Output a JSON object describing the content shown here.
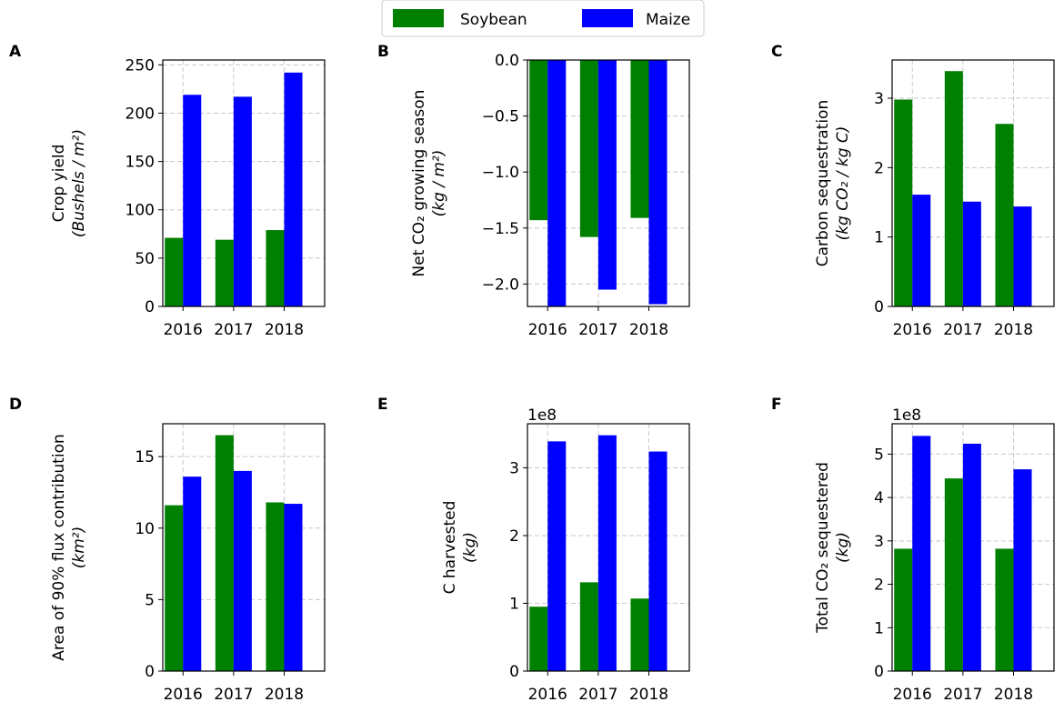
{
  "legend": [
    {
      "name": "Soybean",
      "color": "#008000"
    },
    {
      "name": "Maize",
      "color": "#0000ff"
    }
  ],
  "chart_data": [
    {
      "panel": "A",
      "type": "bar",
      "categories": [
        "2016",
        "2017",
        "2018"
      ],
      "series": [
        {
          "name": "Soybean",
          "color": "#008000",
          "values": [
            71,
            69,
            79
          ]
        },
        {
          "name": "Maize",
          "color": "#0000ff",
          "values": [
            219,
            217,
            242
          ]
        }
      ],
      "ylabel_line1": "Crop yield",
      "ylabel_line2": "(Bushels / m²)",
      "ylim": [
        0,
        255
      ],
      "yticks": [
        0,
        50,
        100,
        150,
        200,
        250
      ],
      "ytick_labels": [
        "0",
        "50",
        "100",
        "150",
        "200",
        "250"
      ],
      "offset_label": ""
    },
    {
      "panel": "B",
      "type": "bar",
      "categories": [
        "2016",
        "2017",
        "2018"
      ],
      "series": [
        {
          "name": "Soybean",
          "color": "#008000",
          "values": [
            -1.43,
            -1.58,
            -1.41
          ]
        },
        {
          "name": "Maize",
          "color": "#0000ff",
          "values": [
            -2.2,
            -2.05,
            -2.18
          ]
        }
      ],
      "ylabel_line1": "Net CO₂ growing season",
      "ylabel_line2": "(kg / m²)",
      "ylim": [
        -2.2,
        0.0
      ],
      "yticks": [
        0,
        -0.5,
        -1.0,
        -1.5,
        -2.0
      ],
      "ytick_labels": [
        "0.0",
        "−0.5",
        "−1.0",
        "−1.5",
        "−2.0"
      ],
      "offset_label": ""
    },
    {
      "panel": "C",
      "type": "bar",
      "categories": [
        "2016",
        "2017",
        "2018"
      ],
      "series": [
        {
          "name": "Soybean",
          "color": "#008000",
          "values": [
            2.98,
            3.39,
            2.63
          ]
        },
        {
          "name": "Maize",
          "color": "#0000ff",
          "values": [
            1.61,
            1.51,
            1.44
          ]
        }
      ],
      "ylabel_line1": "Carbon sequestration",
      "ylabel_line2": "(kg CO₂ / kg C)",
      "ylim": [
        0,
        3.55
      ],
      "yticks": [
        0,
        1,
        2,
        3
      ],
      "ytick_labels": [
        "0",
        "1",
        "2",
        "3"
      ],
      "offset_label": ""
    },
    {
      "panel": "D",
      "type": "bar",
      "categories": [
        "2016",
        "2017",
        "2018"
      ],
      "series": [
        {
          "name": "Soybean",
          "color": "#008000",
          "values": [
            11.6,
            16.5,
            11.8
          ]
        },
        {
          "name": "Maize",
          "color": "#0000ff",
          "values": [
            13.6,
            14.0,
            11.7
          ]
        }
      ],
      "ylabel_line1": "Area of 90% flux contribution",
      "ylabel_line2": "(km²)",
      "ylim": [
        0,
        17.3
      ],
      "yticks": [
        0,
        5,
        10,
        15
      ],
      "ytick_labels": [
        "0",
        "5",
        "10",
        "15"
      ],
      "offset_label": ""
    },
    {
      "panel": "E",
      "type": "bar",
      "categories": [
        "2016",
        "2017",
        "2018"
      ],
      "series": [
        {
          "name": "Soybean",
          "color": "#008000",
          "values": [
            0.95,
            1.31,
            1.07
          ]
        },
        {
          "name": "Maize",
          "color": "#0000ff",
          "values": [
            3.39,
            3.48,
            3.24
          ]
        }
      ],
      "ylabel_line1": "C harvested",
      "ylabel_line2": "(kg)",
      "ylim": [
        0,
        3.65
      ],
      "yticks": [
        0,
        1,
        2,
        3
      ],
      "ytick_labels": [
        "0",
        "1",
        "2",
        "3"
      ],
      "offset_label": "1e8"
    },
    {
      "panel": "F",
      "type": "bar",
      "categories": [
        "2016",
        "2017",
        "2018"
      ],
      "series": [
        {
          "name": "Soybean",
          "color": "#008000",
          "values": [
            2.82,
            4.44,
            2.82
          ]
        },
        {
          "name": "Maize",
          "color": "#0000ff",
          "values": [
            5.42,
            5.24,
            4.65
          ]
        }
      ],
      "ylabel_line1": "Total CO₂ sequestered",
      "ylabel_line2": "(kg)",
      "ylim": [
        0,
        5.7
      ],
      "yticks": [
        0,
        1,
        2,
        3,
        4,
        5
      ],
      "ytick_labels": [
        "0",
        "1",
        "2",
        "3",
        "4",
        "5"
      ],
      "offset_label": "1e8"
    }
  ]
}
